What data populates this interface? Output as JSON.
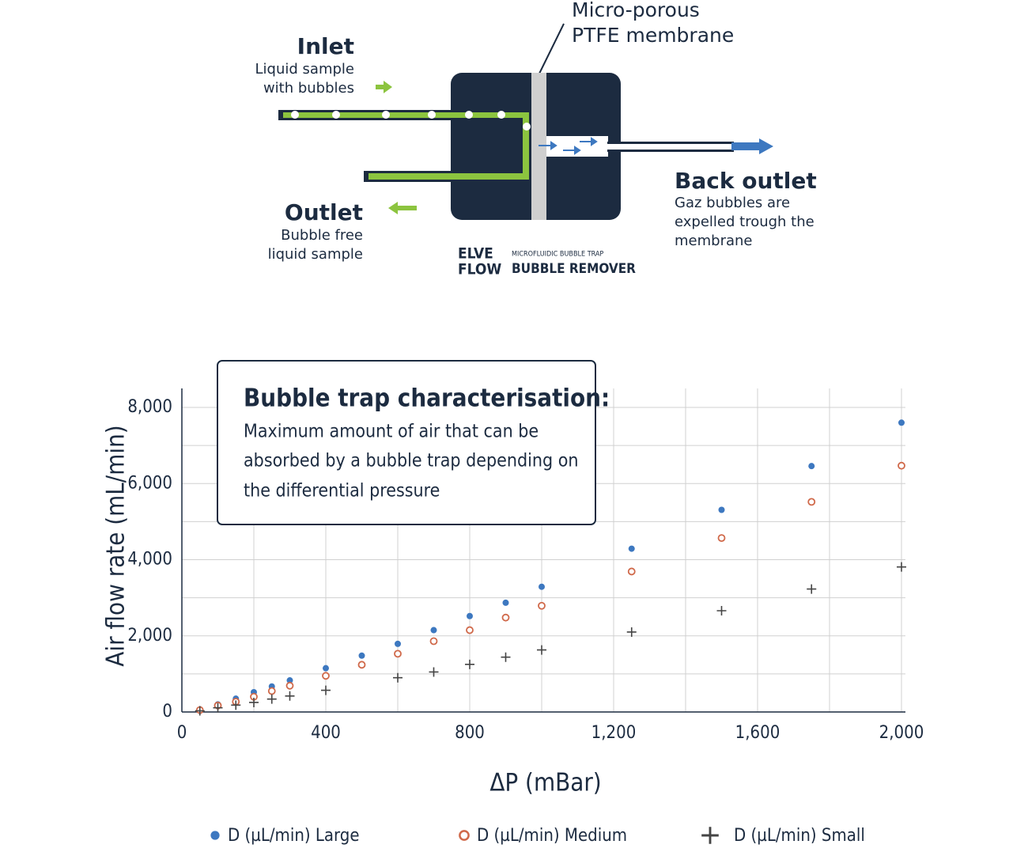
{
  "diagram": {
    "membrane_label": [
      "Micro-porous",
      "PTFE membrane"
    ],
    "inlet": {
      "title": "Inlet",
      "text": [
        "Liquid sample",
        "with bubbles"
      ]
    },
    "outlet": {
      "title": "Outlet",
      "text": [
        "Bubble free",
        "liquid sample"
      ]
    },
    "back_outlet": {
      "title": "Back outlet",
      "text": [
        "Gaz bubbles are",
        "expelled trough the",
        "membrane"
      ]
    },
    "logo": {
      "brand": [
        "ELVE",
        "FLOW"
      ],
      "subtitle": "MICROFLUIDIC BUBBLE TRAP",
      "product": "BUBBLE REMOVER"
    }
  },
  "chart_data": {
    "type": "scatter",
    "annotation": {
      "title": "Bubble trap characterisation:",
      "text": [
        "Maximum amount of air that can be",
        "absorbed by a bubble trap depending on",
        "the differential pressure"
      ]
    },
    "x_label": "ΔP (mBar)",
    "y_label": "Air flow rate (mL/min)",
    "x": [
      50,
      100,
      150,
      200,
      250,
      300,
      400,
      500,
      600,
      700,
      800,
      900,
      1000,
      1250,
      1500,
      1750,
      2000
    ],
    "series": [
      {
        "name": "D (µL/min) Large",
        "color": "#3d78c0",
        "marker": "filled-circle",
        "values": [
          60,
          200,
          350,
          520,
          670,
          830,
          1150,
          1480,
          1790,
          2150,
          2520,
          2870,
          3290,
          4290,
          5310,
          6460,
          7600
        ]
      },
      {
        "name": "D (µL/min) Medium",
        "color": "#d0694a",
        "marker": "open-circle",
        "values": [
          50,
          170,
          270,
          400,
          550,
          690,
          950,
          1240,
          1530,
          1860,
          2150,
          2480,
          2790,
          3690,
          4570,
          5520,
          6470
        ]
      },
      {
        "name": "D (µL/min) Small",
        "color": "#444444",
        "marker": "plus",
        "values": [
          30,
          110,
          180,
          250,
          340,
          420,
          570,
          null,
          900,
          1050,
          1250,
          1440,
          1630,
          2100,
          2660,
          3230,
          3810
        ]
      }
    ],
    "xlim": [
      0,
      2000
    ],
    "ylim": [
      0,
      8500
    ],
    "xticks": [
      0,
      {
        "value": 400,
        "label": "400"
      },
      800,
      {
        "value": 1200,
        "label": "1,200"
      },
      {
        "value": 1600,
        "label": "1,600"
      },
      {
        "value": 2000,
        "label": "2,000"
      }
    ],
    "yticks": [
      0,
      {
        "value": 2000,
        "label": "2,000"
      },
      {
        "value": 4000,
        "label": "4,000"
      },
      {
        "value": 6000,
        "label": "6,000"
      },
      {
        "value": 8000,
        "label": "8,000"
      }
    ],
    "x_minor_grid": [
      200,
      600,
      1000,
      1400,
      1800
    ],
    "y_minor_grid": [
      1000,
      3000,
      5000,
      7000
    ],
    "grid": true,
    "legend": "bottom"
  }
}
